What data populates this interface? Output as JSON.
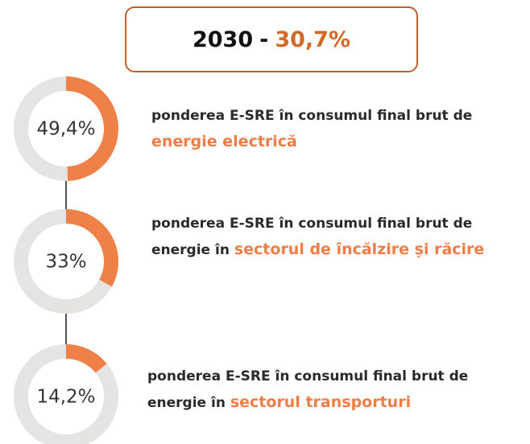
{
  "header": {
    "year": "2030",
    "separator": "-",
    "total": "30,7%"
  },
  "chart_data": [
    {
      "type": "donut",
      "values": [
        49.4
      ],
      "value_labels": [
        "49,4%"
      ],
      "color": "#ef8148",
      "track_color": "#e6e3e3",
      "text": "ponderea E-SRE în consumul final brut de",
      "highlight": "energie electrică"
    },
    {
      "type": "donut",
      "values": [
        33
      ],
      "value_labels": [
        "33%"
      ],
      "color": "#ef8148",
      "track_color": "#e6e3e3",
      "text": "ponderea E-SRE în consumul final brut de energie în",
      "highlight": "sectorul de încălzire și răcire"
    },
    {
      "type": "donut",
      "values": [
        14.2
      ],
      "value_labels": [
        "14,2%"
      ],
      "color": "#ef8148",
      "track_color": "#e6e3e3",
      "text": "ponderea E-SRE în consumul final brut de energie în",
      "highlight": "sectorul transporturi"
    }
  ]
}
